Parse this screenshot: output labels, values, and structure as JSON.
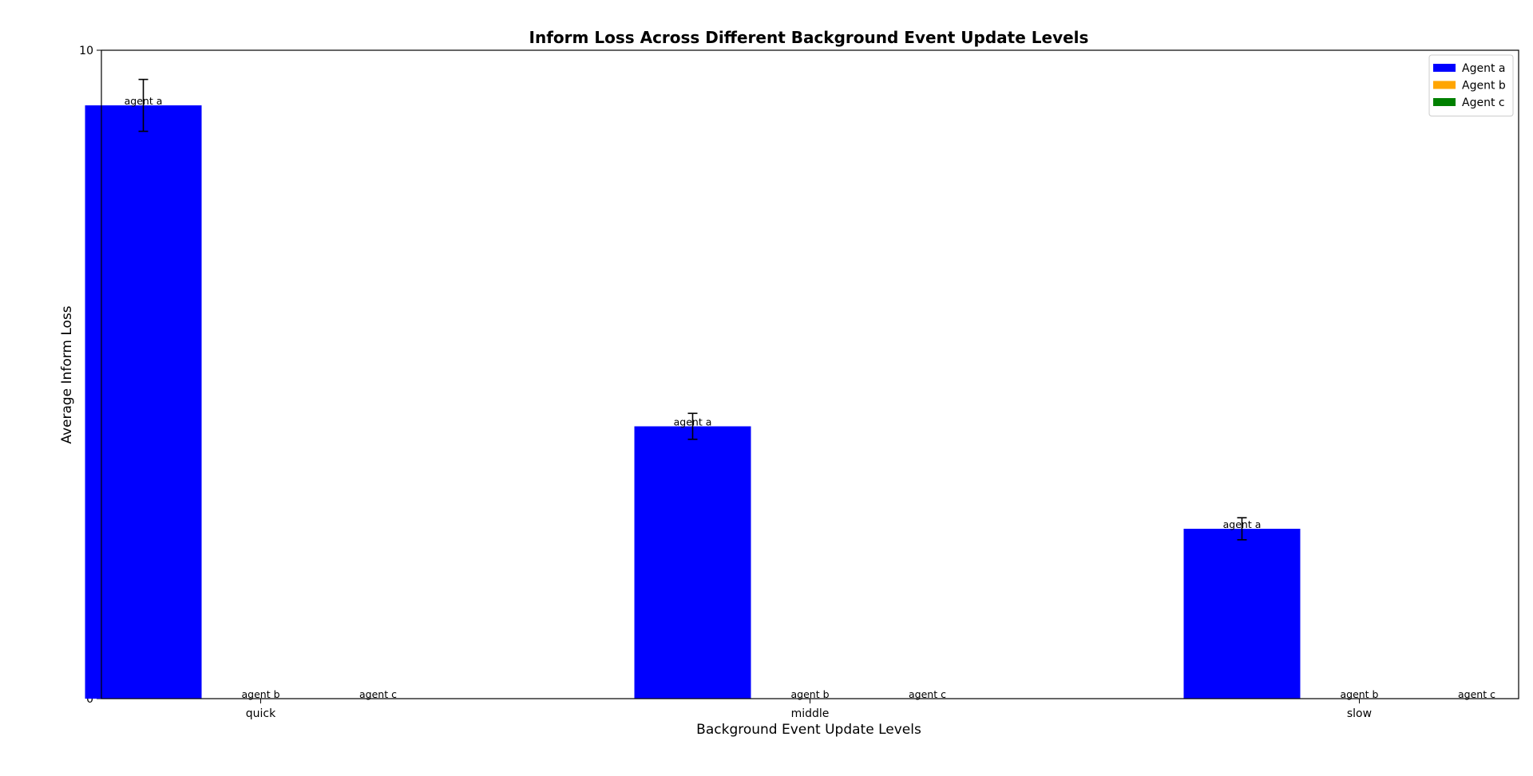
{
  "chart_data": {
    "type": "bar",
    "title": "Inform Loss Across Different Background Event Update Levels",
    "xlabel": "Background Event Update Levels",
    "ylabel": "Average Inform Loss",
    "categories": [
      "quick",
      "middle",
      "slow"
    ],
    "ylim": [
      0,
      10
    ],
    "yticks": [
      0,
      2,
      4,
      6,
      8,
      10
    ],
    "grid": false,
    "legend_position": "top-right",
    "series": [
      {
        "name": "Agent a",
        "bar_label": "agent a",
        "color": "#0000ff",
        "values": [
          9.15,
          4.2,
          2.62
        ],
        "errors": [
          0.4,
          0.2,
          0.17
        ]
      },
      {
        "name": "Agent b",
        "bar_label": "agent b",
        "color": "#ffa500",
        "values": [
          0,
          0,
          0
        ],
        "errors": [
          0,
          0,
          0
        ]
      },
      {
        "name": "Agent c",
        "bar_label": "agent c",
        "color": "#008000",
        "values": [
          0,
          0,
          0
        ],
        "errors": [
          0,
          0,
          0
        ]
      }
    ]
  }
}
